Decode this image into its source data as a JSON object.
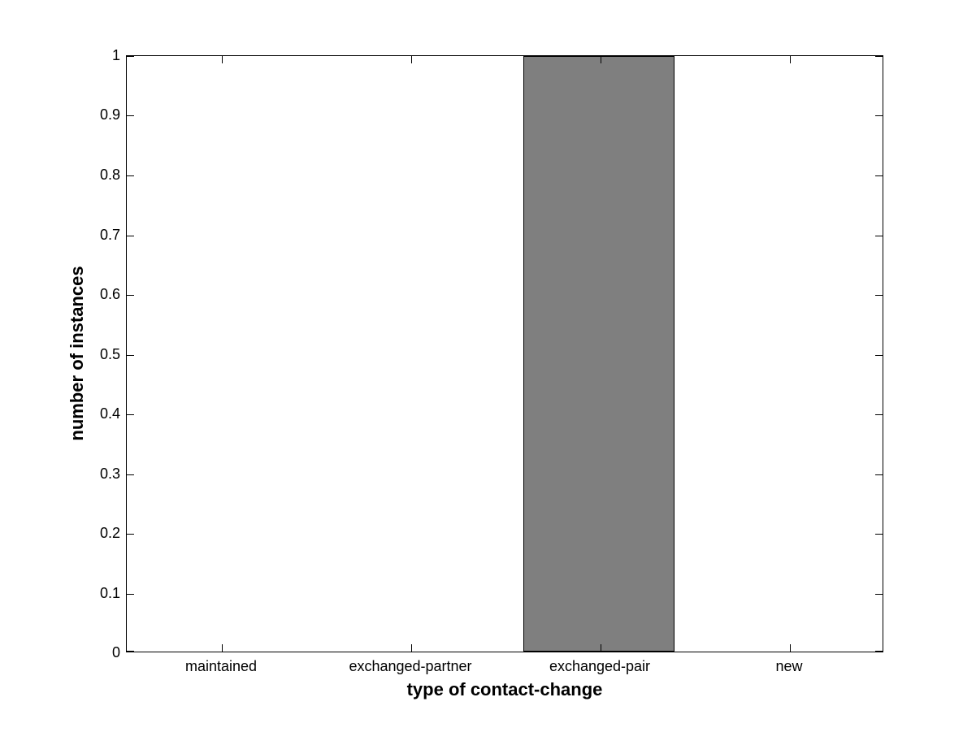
{
  "figure": {
    "background": "#FFFFFF"
  },
  "chart_data": {
    "type": "bar",
    "title": "",
    "categories": [
      "maintained",
      "exchanged-partner",
      "exchanged-pair",
      "new"
    ],
    "values": [
      0,
      0,
      1,
      0
    ],
    "xlabel": "type of contact-change",
    "ylabel": "number of instances",
    "ylim": [
      0,
      1
    ],
    "ytick_values": [
      0,
      0.1,
      0.2,
      0.3,
      0.4,
      0.5,
      0.6,
      0.7,
      0.8,
      0.9,
      1
    ],
    "ytick_labels": [
      "0",
      "0.1",
      "0.2",
      "0.3",
      "0.4",
      "0.5",
      "0.6",
      "0.7",
      "0.8",
      "0.9",
      "1"
    ],
    "bar_color": "#7F7F7F",
    "bar_edge_color": "#000000",
    "axis_color": "#000000",
    "text_color": "#000000",
    "bar_width_fraction": 0.8,
    "grid": false,
    "legend": null,
    "box": true
  }
}
